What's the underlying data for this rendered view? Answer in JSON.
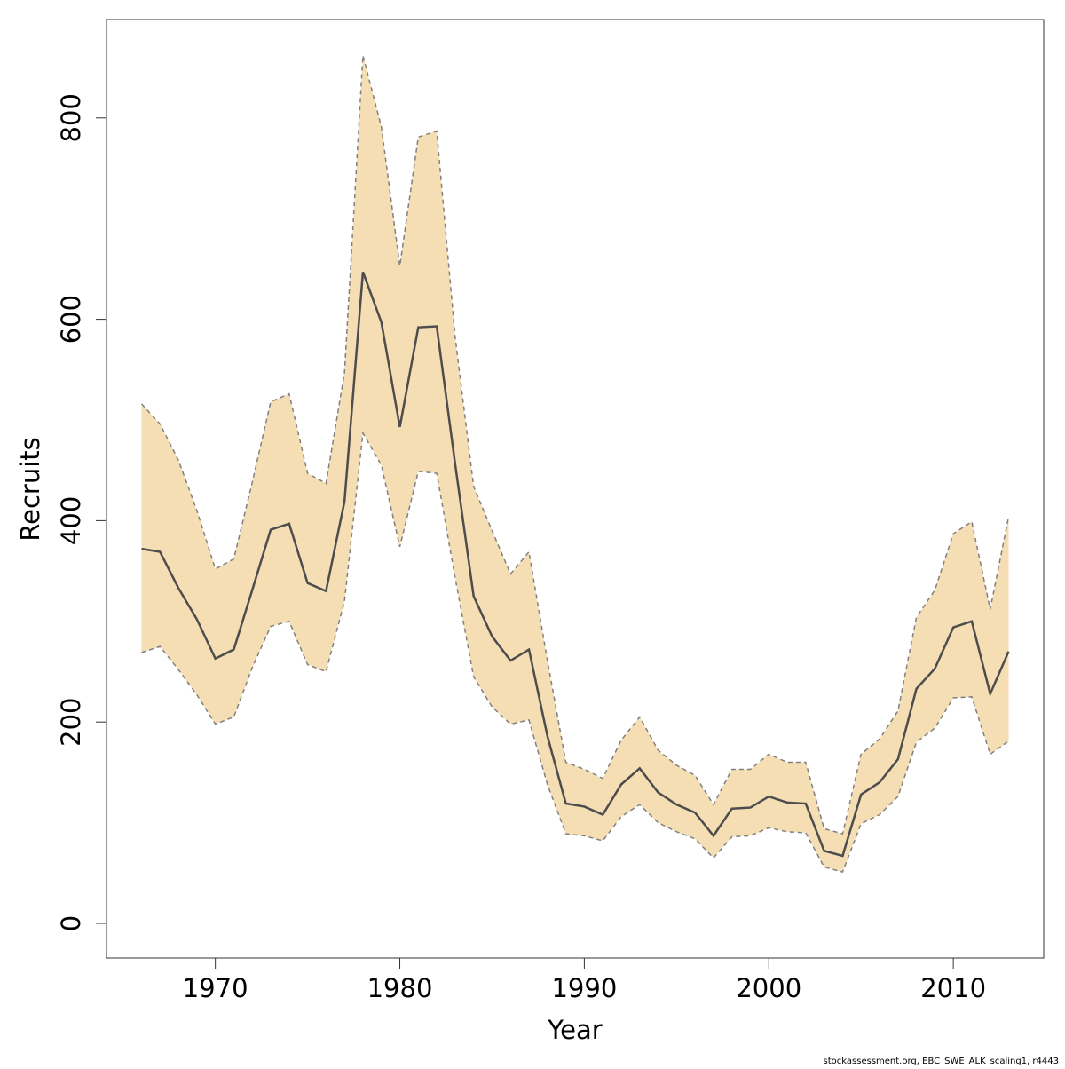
{
  "chart_data": {
    "type": "line",
    "xlabel": "Year",
    "ylabel": "Recruits",
    "footer": "stockassessment.org, EBC_SWE_ALK_scaling1, r4443",
    "x": [
      1966,
      1967,
      1968,
      1969,
      1970,
      1971,
      1972,
      1973,
      1974,
      1975,
      1976,
      1977,
      1978,
      1979,
      1980,
      1981,
      1982,
      1983,
      1984,
      1985,
      1986,
      1987,
      1988,
      1989,
      1990,
      1991,
      1992,
      1993,
      1994,
      1995,
      1996,
      1997,
      1998,
      1999,
      2000,
      2001,
      2002,
      2003,
      2004,
      2005,
      2006,
      2007,
      2008,
      2009,
      2010,
      2011,
      2012,
      2013
    ],
    "values": [
      372,
      369,
      333,
      302,
      263,
      272,
      331,
      391,
      397,
      338,
      330,
      419,
      647,
      597,
      493,
      592,
      593,
      456,
      325,
      285,
      261,
      272,
      186,
      119,
      116,
      108,
      138,
      154,
      130,
      118,
      110,
      87,
      114,
      115,
      126,
      120,
      119,
      72,
      67,
      128,
      140,
      163,
      233,
      253,
      294,
      300,
      228,
      270
    ],
    "upper": [
      516,
      496,
      460,
      410,
      352,
      362,
      438,
      518,
      526,
      447,
      437,
      547,
      862,
      791,
      653,
      781,
      787,
      582,
      434,
      390,
      347,
      369,
      261,
      160,
      153,
      144,
      182,
      205,
      172,
      157,
      147,
      118,
      153,
      153,
      168,
      160,
      160,
      94,
      89,
      168,
      183,
      211,
      304,
      331,
      387,
      399,
      312,
      404
    ],
    "lower": [
      269,
      275,
      252,
      227,
      198,
      205,
      254,
      295,
      300,
      257,
      250,
      320,
      487,
      455,
      374,
      449,
      447,
      343,
      245,
      215,
      198,
      202,
      138,
      89,
      87,
      82,
      106,
      118,
      100,
      91,
      84,
      65,
      86,
      87,
      95,
      91,
      90,
      56,
      51,
      99,
      108,
      126,
      180,
      194,
      224,
      225,
      168,
      181
    ],
    "line_color": "#4d4d4d",
    "band_color": "#f5deb3",
    "bound_color": "#808080",
    "xlim": [
      1964.1,
      2014.9
    ],
    "xticks": [
      1970,
      1980,
      1990,
      2000,
      2010
    ],
    "ylim": [
      -34.4,
      897.7
    ],
    "yticks": [
      0,
      200,
      400,
      600,
      800
    ]
  }
}
